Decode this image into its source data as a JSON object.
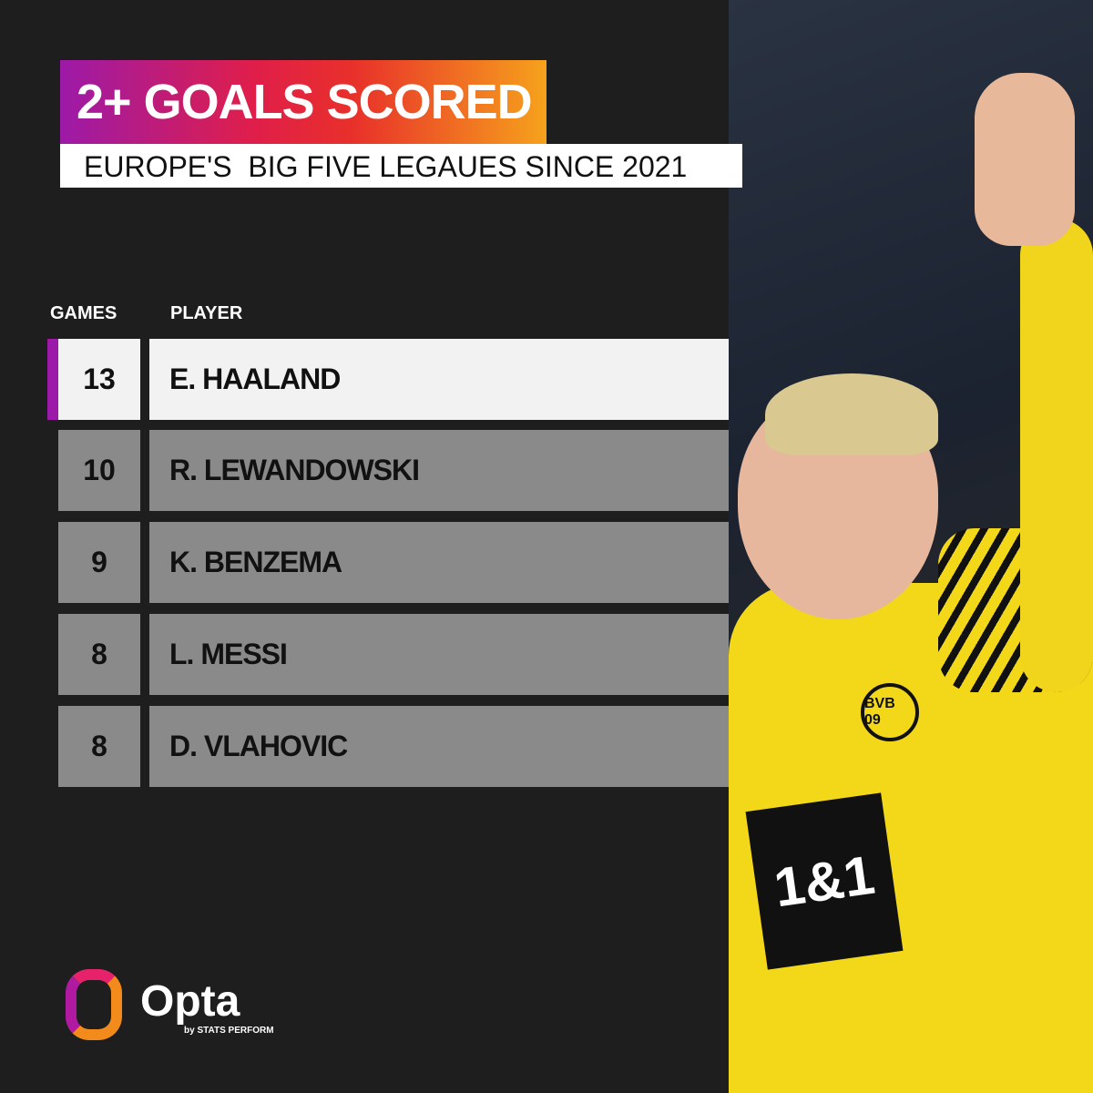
{
  "title": "2+ GOALS SCORED",
  "subtitle": "EUROPE'S  BIG FIVE LEGAUES SINCE 2021",
  "colors": {
    "background": "#1e1e1e",
    "accent_purple": "#9c1aa8",
    "gradient_end": "#f6a21c",
    "row_highlight": "#f2f2f2",
    "row_default": "#8a8a8a"
  },
  "chart_data": {
    "type": "table",
    "columns": [
      "GAMES",
      "PLAYER"
    ],
    "rows": [
      {
        "games": "13",
        "player": "E. HAALAND"
      },
      {
        "games": "10",
        "player": "R. LEWANDOWSKI"
      },
      {
        "games": "9",
        "player": "K. BENZEMA"
      },
      {
        "games": "8",
        "player": "L. MESSI"
      },
      {
        "games": "8",
        "player": "D. VLAHOVIC"
      }
    ]
  },
  "photo": {
    "badge": "BVB 09",
    "sponsor": "1&1"
  },
  "logo": {
    "name": "Opta",
    "tagline": "by STATS PERFORM"
  }
}
